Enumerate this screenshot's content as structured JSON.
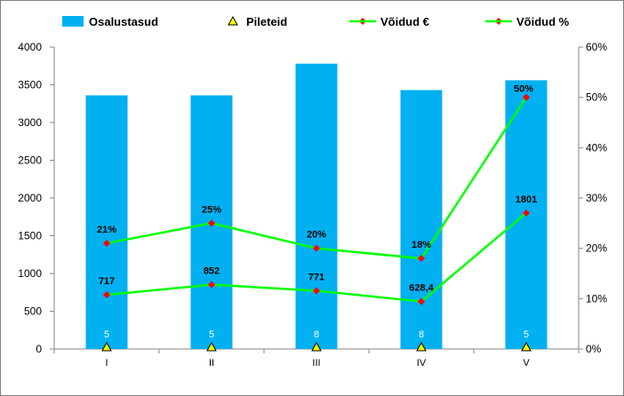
{
  "chart_data": {
    "type": "bar",
    "categories": [
      "I",
      "II",
      "III",
      "IV",
      "V"
    ],
    "series": [
      {
        "name": "Osalustasud",
        "type": "bar",
        "axis": "left",
        "color": "#00B0F0",
        "values": [
          3360,
          3360,
          3780,
          3430,
          3560
        ]
      },
      {
        "name": "Pileteid",
        "type": "marker",
        "axis": "left",
        "color": "#000000",
        "marker_fill": "#FFFF00",
        "values": [
          5,
          5,
          8,
          8,
          5
        ],
        "labels": [
          "5",
          "5",
          "8",
          "8",
          "5"
        ]
      },
      {
        "name": "Võidud €",
        "type": "line",
        "axis": "left",
        "color": "#00FF00",
        "marker_color": "#FF0000",
        "values": [
          717,
          852,
          771,
          628.4,
          1801
        ],
        "labels": [
          "717",
          "852",
          "771",
          "628,4",
          "1801"
        ]
      },
      {
        "name": "Võidud %",
        "type": "line",
        "axis": "right",
        "color": "#00FF00",
        "marker_color": "#FF0000",
        "values": [
          21,
          25,
          20,
          18,
          50
        ],
        "labels": [
          "21%",
          "25%",
          "20%",
          "18%",
          "50%"
        ]
      }
    ],
    "y_left": {
      "min": 0,
      "max": 4000,
      "ticks": [
        "0",
        "500",
        "1000",
        "1500",
        "2000",
        "2500",
        "3000",
        "3500",
        "4000"
      ]
    },
    "y_right": {
      "min": 0,
      "max": 60,
      "ticks": [
        "0%",
        "10%",
        "20%",
        "30%",
        "40%",
        "50%",
        "60%"
      ]
    },
    "grid": false,
    "legend": "top"
  }
}
